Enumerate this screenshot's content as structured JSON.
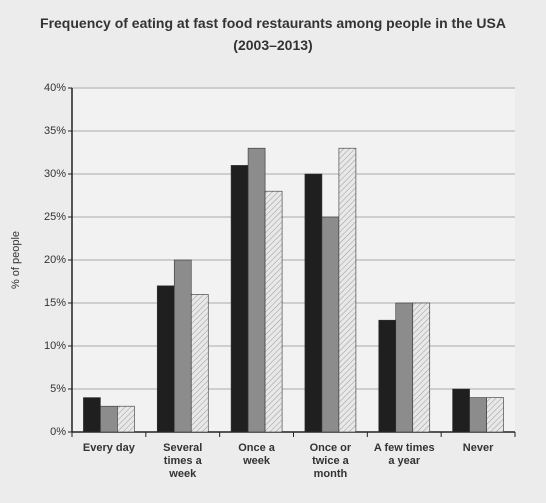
{
  "chart_data": {
    "type": "bar",
    "title": "Frequency of eating at fast food restaurants among people in the USA (2003–2013)",
    "y_label": "% of people",
    "categories": [
      "Every day",
      "Several times a week",
      "Once a week",
      "Once or twice a month",
      "A few times a year",
      "Never"
    ],
    "series": [
      {
        "color": "#1f1f1f",
        "values": [
          4,
          17,
          31,
          30,
          13,
          5
        ]
      },
      {
        "color": "#8c8c8c",
        "values": [
          3,
          20,
          33,
          25,
          15,
          4
        ]
      },
      {
        "color": "#e2e2e2",
        "pattern": "hatch",
        "values": [
          3,
          16,
          28,
          33,
          15,
          4
        ]
      }
    ],
    "ylim": [
      0,
      40
    ],
    "yticks": [
      {
        "value": 0,
        "label": "0%"
      },
      {
        "value": 5,
        "label": "5%"
      },
      {
        "value": 10,
        "label": "10%"
      },
      {
        "value": 15,
        "label": "15%"
      },
      {
        "value": 20,
        "label": "20%"
      },
      {
        "value": 25,
        "label": "25%"
      },
      {
        "value": 30,
        "label": "30%"
      },
      {
        "value": 35,
        "label": "35%"
      },
      {
        "value": 40,
        "label": "40%"
      }
    ],
    "grid": true
  }
}
